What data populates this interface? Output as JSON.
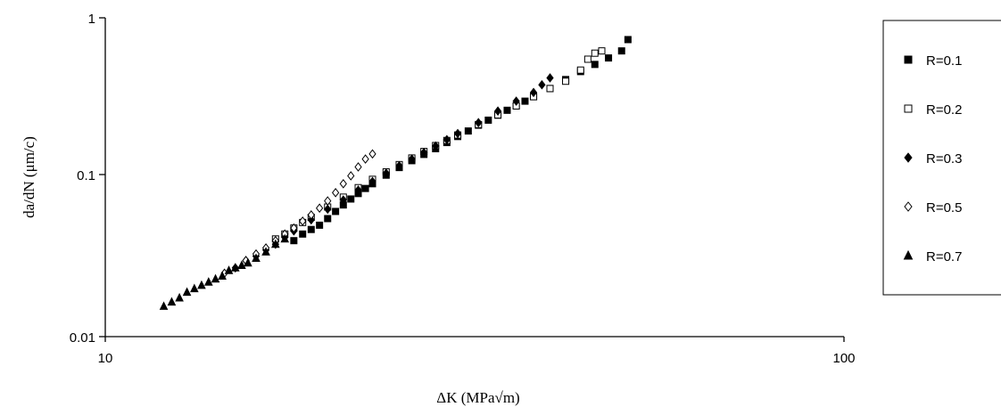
{
  "chart_data": {
    "type": "scatter",
    "title": "",
    "xlabel": "ΔK (MPa√m)",
    "ylabel": "da/dN (μm/c)",
    "xscale": "log",
    "yscale": "log",
    "xlim": [
      10,
      100
    ],
    "ylim": [
      0.01,
      1
    ],
    "x_ticks": [
      10,
      100
    ],
    "x_tick_labels": [
      "10",
      "100"
    ],
    "y_ticks": [
      0.01,
      0.1,
      1
    ],
    "y_tick_labels": [
      "0.01",
      "0.1",
      "1"
    ],
    "grid": false,
    "legend_position": "right",
    "series": [
      {
        "name": "R=0.1",
        "marker": "filled-square",
        "x": [
          18.0,
          18.5,
          19.0,
          19.5,
          20.0,
          20.5,
          21.0,
          21.5,
          22.0,
          22.5,
          23.0,
          24.0,
          25.0,
          26.0,
          27.0,
          28.0,
          29.0,
          30.0,
          31.0,
          32.0,
          33.0,
          34.0,
          35.0,
          36.0,
          37.0,
          38.0,
          40.0,
          42.0,
          44.0,
          46.0,
          48.0,
          50.0,
          51.0
        ],
        "y": [
          0.04,
          0.044,
          0.047,
          0.05,
          0.055,
          0.061,
          0.067,
          0.073,
          0.079,
          0.085,
          0.091,
          0.103,
          0.115,
          0.127,
          0.139,
          0.151,
          0.165,
          0.18,
          0.195,
          0.212,
          0.228,
          0.245,
          0.263,
          0.28,
          0.3,
          0.32,
          0.36,
          0.41,
          0.46,
          0.51,
          0.56,
          0.62,
          0.73
        ]
      },
      {
        "name": "R=0.2",
        "marker": "open-square",
        "x": [
          17.0,
          17.5,
          18.0,
          18.5,
          19.0,
          20.0,
          21.0,
          22.0,
          23.0,
          24.0,
          25.0,
          26.0,
          27.0,
          28.0,
          29.0,
          30.0,
          32.0,
          34.0,
          36.0,
          38.0,
          40.0,
          42.0,
          44.0,
          45.0,
          46.0,
          47.0
        ],
        "y": [
          0.041,
          0.044,
          0.048,
          0.052,
          0.056,
          0.065,
          0.075,
          0.086,
          0.097,
          0.108,
          0.12,
          0.132,
          0.145,
          0.158,
          0.17,
          0.184,
          0.214,
          0.246,
          0.28,
          0.32,
          0.36,
          0.4,
          0.47,
          0.55,
          0.6,
          0.62
        ]
      },
      {
        "name": "R=0.3",
        "marker": "filled-diamond",
        "x": [
          15.5,
          16.0,
          16.5,
          17.0,
          17.5,
          18.0,
          19.0,
          20.0,
          21.0,
          22.0,
          23.0,
          24.0,
          25.0,
          26.0,
          27.0,
          28.0,
          29.0,
          30.0,
          32.0,
          34.0,
          36.0,
          38.0,
          39.0,
          40.0
        ],
        "y": [
          0.03,
          0.032,
          0.035,
          0.038,
          0.042,
          0.046,
          0.054,
          0.063,
          0.072,
          0.083,
          0.094,
          0.106,
          0.118,
          0.13,
          0.143,
          0.157,
          0.172,
          0.188,
          0.22,
          0.26,
          0.3,
          0.34,
          0.38,
          0.42
        ]
      },
      {
        "name": "R=0.5",
        "marker": "open-diamond",
        "x": [
          14.5,
          15.0,
          15.5,
          16.0,
          16.5,
          17.0,
          17.5,
          18.0,
          18.5,
          19.0,
          19.5,
          20.0,
          20.5,
          21.0,
          21.5,
          22.0,
          22.5,
          23.0
        ],
        "y": [
          0.025,
          0.027,
          0.03,
          0.033,
          0.036,
          0.04,
          0.044,
          0.048,
          0.053,
          0.058,
          0.064,
          0.071,
          0.08,
          0.091,
          0.102,
          0.116,
          0.13,
          0.14
        ]
      },
      {
        "name": "R=0.7",
        "marker": "filled-triangle",
        "x": [
          12.0,
          12.3,
          12.6,
          12.9,
          13.2,
          13.5,
          13.8,
          14.1,
          14.4,
          14.7,
          15.0,
          15.3,
          15.6,
          16.0,
          16.5,
          17.0,
          17.5
        ],
        "y": [
          0.0155,
          0.0165,
          0.0175,
          0.019,
          0.02,
          0.021,
          0.022,
          0.023,
          0.024,
          0.026,
          0.027,
          0.028,
          0.029,
          0.031,
          0.034,
          0.038,
          0.041
        ]
      }
    ]
  },
  "colors": {
    "markers": "#000000",
    "axes": "#000000",
    "background": "#ffffff"
  }
}
